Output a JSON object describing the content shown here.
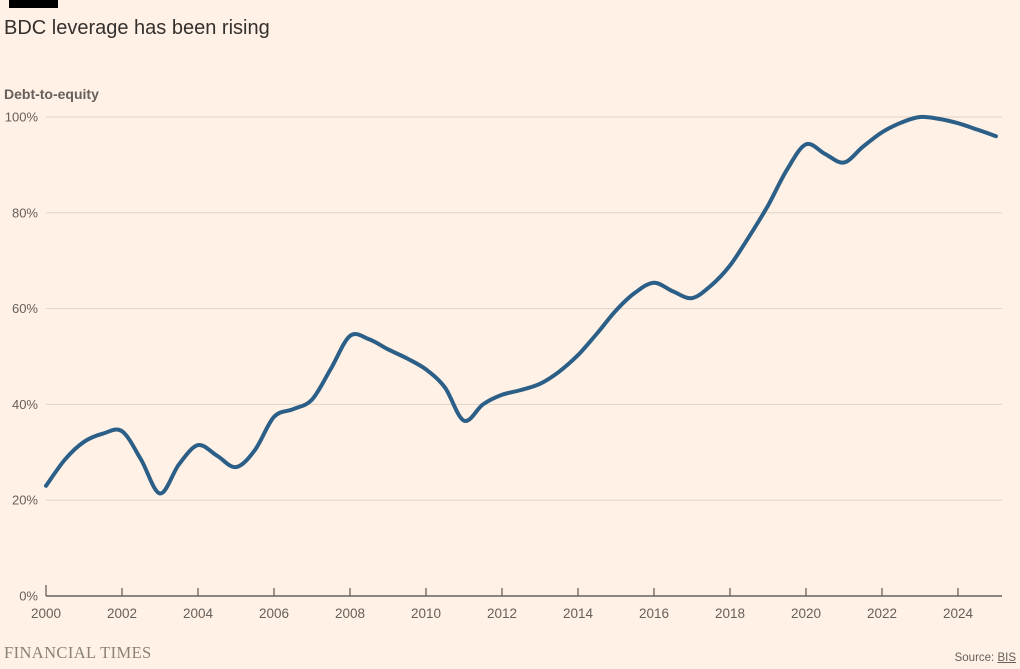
{
  "page": {
    "background_color": "#FFF1E5",
    "accent_bar_color": "#000000"
  },
  "header": {
    "title": "BDC leverage has been rising"
  },
  "chart_data": {
    "type": "line",
    "title": "BDC leverage has been rising",
    "ylabel": "Debt-to-equity",
    "series_name": "Debt-to-equity",
    "x": [
      2000,
      2000.5,
      2001,
      2001.5,
      2002,
      2002.5,
      2003,
      2003.5,
      2004,
      2004.5,
      2005,
      2005.5,
      2006,
      2006.5,
      2007,
      2007.5,
      2008,
      2008.5,
      2009,
      2009.5,
      2010,
      2010.5,
      2011,
      2011.5,
      2012,
      2012.5,
      2013,
      2013.5,
      2014,
      2014.5,
      2015,
      2015.5,
      2016,
      2016.5,
      2017,
      2017.5,
      2018,
      2018.5,
      2019,
      2019.5,
      2020,
      2020.5,
      2021,
      2021.5,
      2022,
      2022.5,
      2023,
      2023.5,
      2024,
      2024.5,
      2025
    ],
    "y": [
      23,
      28.5,
      32.2,
      33.9,
      34.4,
      28.5,
      21.4,
      27.5,
      31.5,
      29.3,
      26.9,
      30.5,
      37.4,
      39,
      41,
      47.5,
      54.3,
      53.6,
      51.5,
      49.6,
      47.3,
      43.5,
      36.6,
      40,
      42,
      43,
      44.3,
      46.8,
      50.3,
      54.8,
      59.6,
      63.3,
      65.4,
      63.6,
      62.2,
      64.8,
      69,
      75,
      81.5,
      89,
      94.3,
      92.3,
      90.5,
      93.8,
      96.8,
      98.8,
      100,
      99.6,
      98.7,
      97.4,
      96
    ],
    "xlim": [
      2000,
      2025.1
    ],
    "ylim": [
      0,
      100
    ],
    "xticks": [
      2000,
      2002,
      2004,
      2006,
      2008,
      2010,
      2012,
      2014,
      2016,
      2018,
      2020,
      2022,
      2024
    ],
    "xtick_labels": [
      "2000",
      "2002",
      "2004",
      "2006",
      "2008",
      "2010",
      "2012",
      "2014",
      "2016",
      "2018",
      "2020",
      "2022",
      "2024"
    ],
    "yticks": [
      0,
      20,
      40,
      60,
      80,
      100
    ],
    "ytick_labels": [
      "0%",
      "20%",
      "40%",
      "60%",
      "80%",
      "100%"
    ],
    "grid": true,
    "legend": "none",
    "line_color": "#2B5F87",
    "grid_color": "#E0D4C7",
    "axis_color": "#66605C",
    "tick_label_color": "#66605C"
  },
  "footer": {
    "brand": "FINANCIAL TIMES",
    "source_label": "Source:",
    "source_link": "BIS"
  }
}
